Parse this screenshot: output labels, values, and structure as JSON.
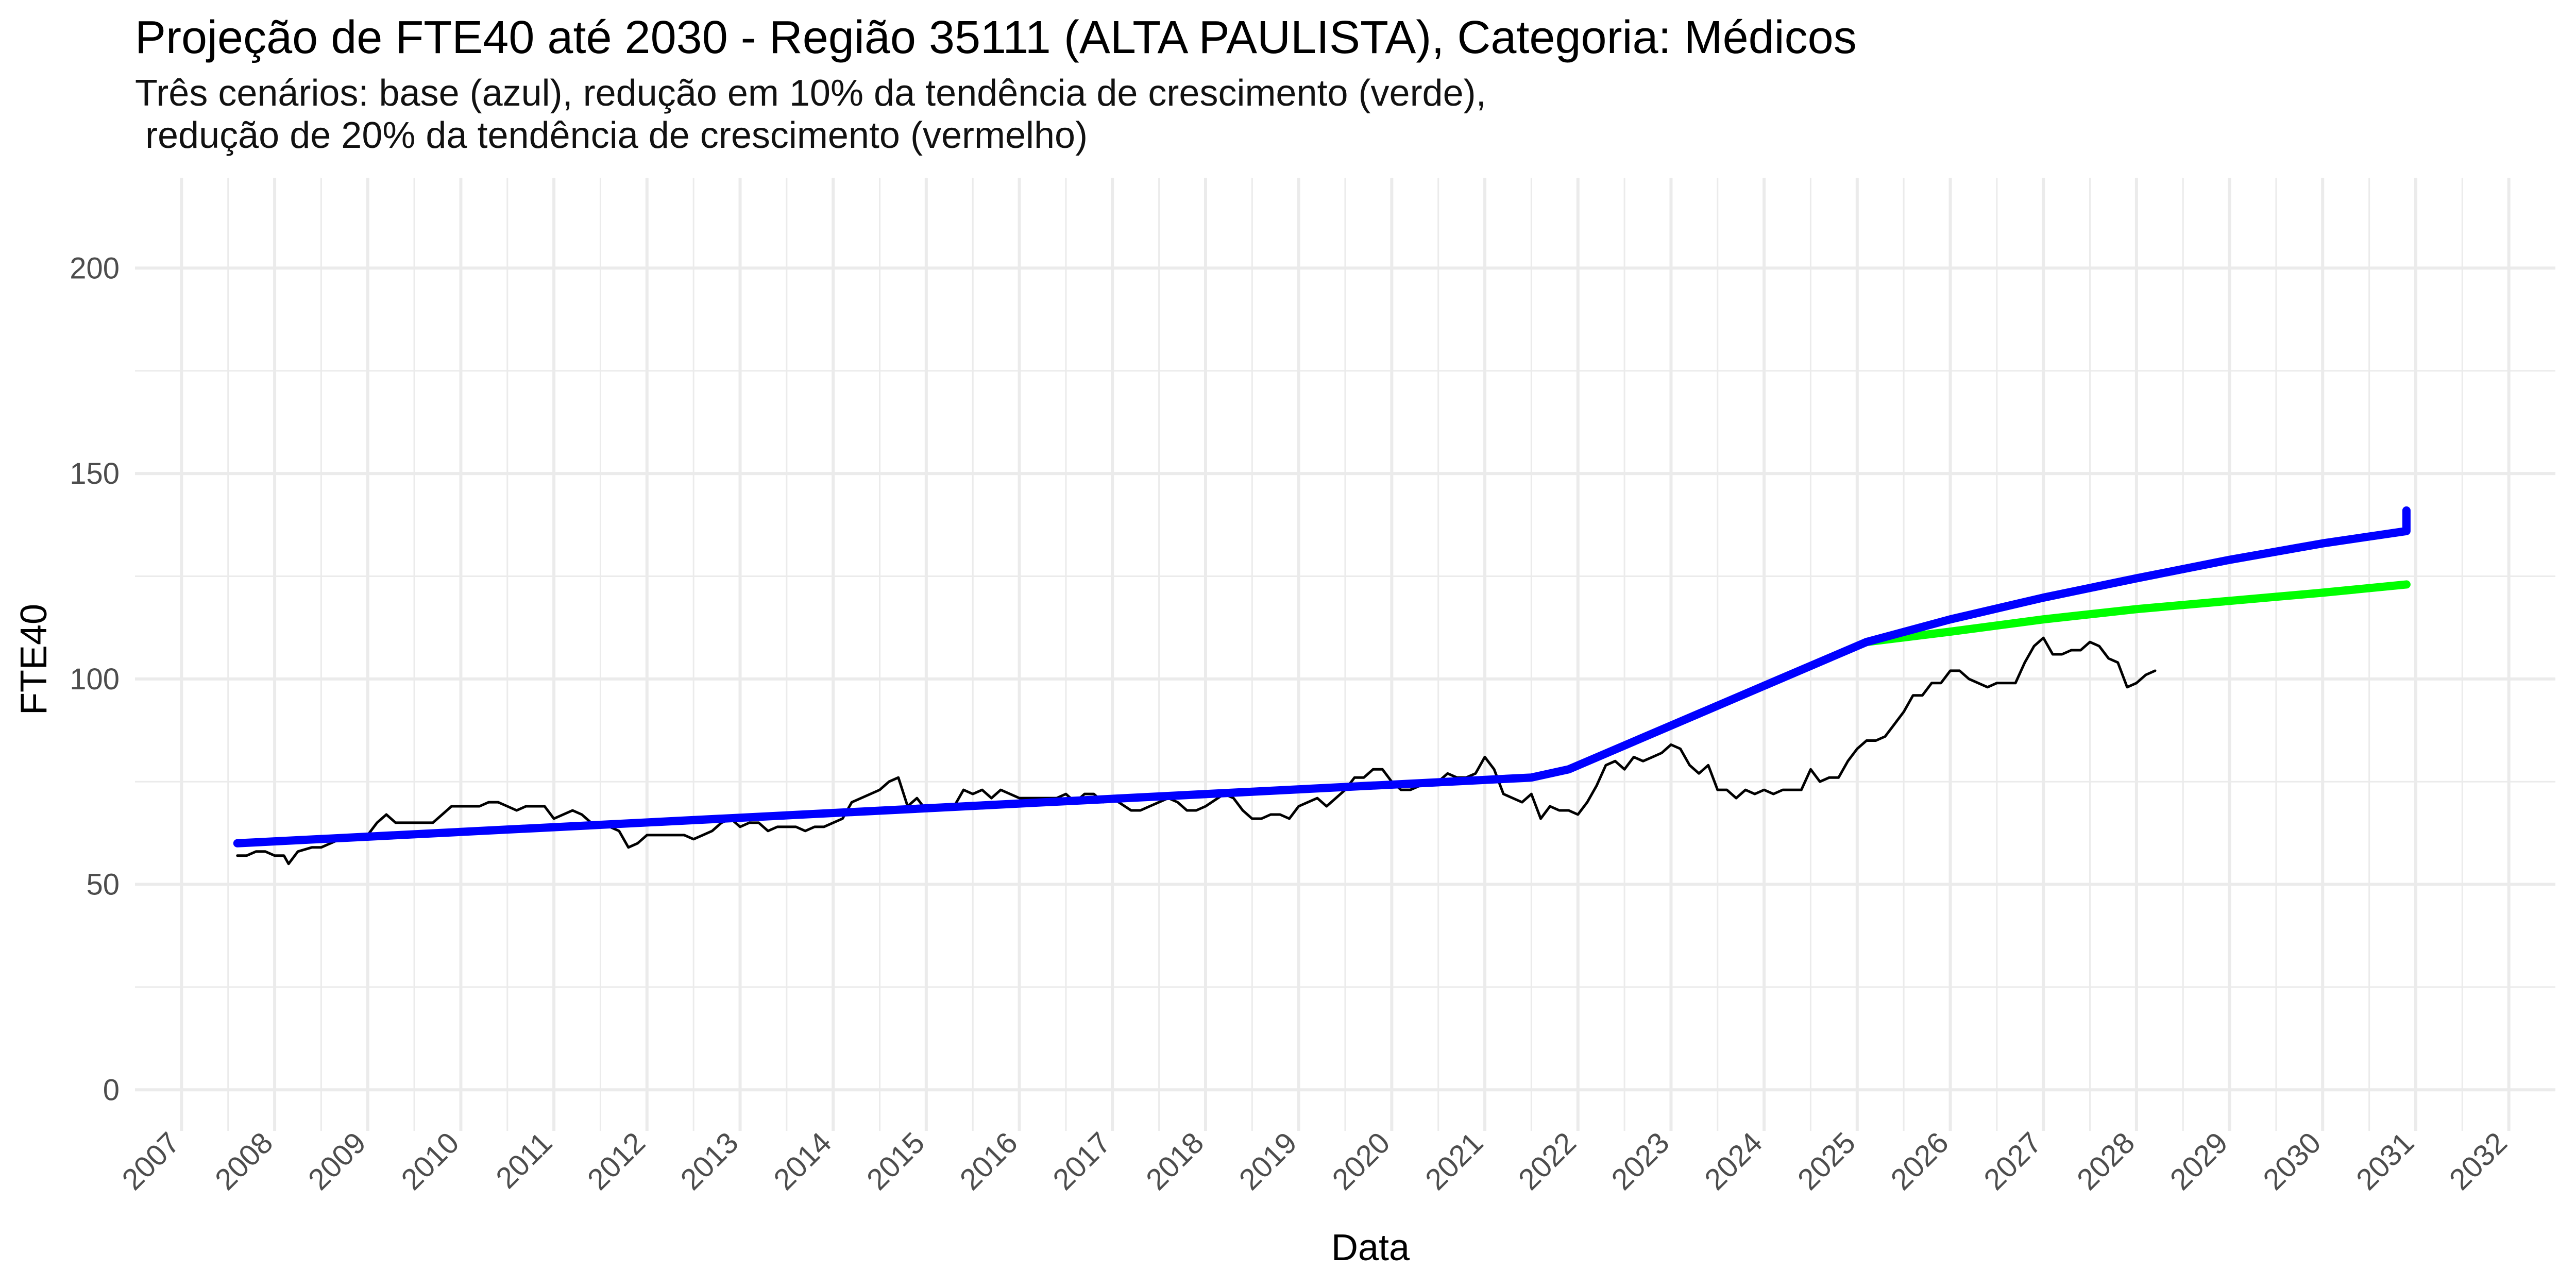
{
  "chart_data": {
    "type": "line",
    "title": "Projeção de FTE40 até 2030 - Região 35111 (ALTA PAULISTA), Categoria: Médicos",
    "subtitle": "Três cenários: base (azul), redução em 10% da tendência de crescimento (verde),\n redução de 20% da tendência de crescimento (vermelho)",
    "xlabel": "Data",
    "ylabel": "FTE40",
    "x_ticks": [
      "2007",
      "2008",
      "2009",
      "2010",
      "2011",
      "2012",
      "2013",
      "2014",
      "2015",
      "2016",
      "2017",
      "2018",
      "2019",
      "2020",
      "2021",
      "2022",
      "2023",
      "2024",
      "2025",
      "2026",
      "2027",
      "2028",
      "2029",
      "2030",
      "2031",
      "2032"
    ],
    "y_ticks": [
      0,
      50,
      100,
      150,
      200
    ],
    "xlim": [
      2006.5,
      2032.5
    ],
    "ylim": [
      -10,
      222
    ],
    "grid": true,
    "legend": "none",
    "colors": {
      "observed": "#000000",
      "base": "#0000ff",
      "green": "#00ff00",
      "red": "#ff0000",
      "grid": "#ebebeb"
    },
    "series": [
      {
        "values": [
          [
            2007.6,
            57
          ],
          [
            2007.7,
            57
          ],
          [
            2007.8,
            58
          ],
          [
            2007.9,
            58
          ],
          [
            2008.0,
            57
          ],
          [
            2008.1,
            57
          ],
          [
            2008.15,
            55
          ],
          [
            2008.25,
            58
          ],
          [
            2008.4,
            59
          ],
          [
            2008.5,
            59
          ],
          [
            2008.6,
            60
          ],
          [
            2008.7,
            61
          ],
          [
            2008.85,
            61
          ],
          [
            2009.0,
            62
          ],
          [
            2009.1,
            65
          ],
          [
            2009.15,
            66
          ],
          [
            2009.2,
            67
          ],
          [
            2009.3,
            65
          ],
          [
            2009.5,
            65
          ],
          [
            2009.7,
            65
          ],
          [
            2009.8,
            67
          ],
          [
            2009.9,
            69
          ],
          [
            2010.1,
            69
          ],
          [
            2010.2,
            69
          ],
          [
            2010.3,
            70
          ],
          [
            2010.4,
            70
          ],
          [
            2010.5,
            69
          ],
          [
            2010.6,
            68
          ],
          [
            2010.7,
            69
          ],
          [
            2010.8,
            69
          ],
          [
            2010.9,
            69
          ],
          [
            2011.0,
            66
          ],
          [
            2011.1,
            67
          ],
          [
            2011.2,
            68
          ],
          [
            2011.3,
            67
          ],
          [
            2011.4,
            65
          ],
          [
            2011.5,
            65
          ],
          [
            2011.7,
            63
          ],
          [
            2011.8,
            59
          ],
          [
            2011.9,
            60
          ],
          [
            2012.0,
            62
          ],
          [
            2012.2,
            62
          ],
          [
            2012.4,
            62
          ],
          [
            2012.5,
            61
          ],
          [
            2012.6,
            62
          ],
          [
            2012.7,
            63
          ],
          [
            2012.8,
            65
          ],
          [
            2012.9,
            66
          ],
          [
            2013.0,
            64
          ],
          [
            2013.1,
            65
          ],
          [
            2013.2,
            65
          ],
          [
            2013.3,
            63
          ],
          [
            2013.4,
            64
          ],
          [
            2013.6,
            64
          ],
          [
            2013.7,
            63
          ],
          [
            2013.8,
            64
          ],
          [
            2013.9,
            64
          ],
          [
            2014.1,
            66
          ],
          [
            2014.2,
            70
          ],
          [
            2014.3,
            71
          ],
          [
            2014.4,
            72
          ],
          [
            2014.5,
            73
          ],
          [
            2014.6,
            75
          ],
          [
            2014.7,
            76
          ],
          [
            2014.8,
            69
          ],
          [
            2014.9,
            71
          ],
          [
            2015.0,
            68
          ],
          [
            2015.1,
            69
          ],
          [
            2015.3,
            69
          ],
          [
            2015.4,
            73
          ],
          [
            2015.5,
            72
          ],
          [
            2015.6,
            73
          ],
          [
            2015.7,
            71
          ],
          [
            2015.8,
            73
          ],
          [
            2015.9,
            72
          ],
          [
            2016.0,
            71
          ],
          [
            2016.2,
            71
          ],
          [
            2016.4,
            71
          ],
          [
            2016.5,
            72
          ],
          [
            2016.6,
            70
          ],
          [
            2016.7,
            72
          ],
          [
            2016.8,
            72
          ],
          [
            2016.9,
            70
          ],
          [
            2017.0,
            71
          ],
          [
            2017.2,
            68
          ],
          [
            2017.3,
            68
          ],
          [
            2017.4,
            69
          ],
          [
            2017.5,
            70
          ],
          [
            2017.6,
            71
          ],
          [
            2017.7,
            70
          ],
          [
            2017.8,
            68
          ],
          [
            2017.9,
            68
          ],
          [
            2018.0,
            69
          ],
          [
            2018.2,
            72
          ],
          [
            2018.3,
            71
          ],
          [
            2018.4,
            68
          ],
          [
            2018.5,
            66
          ],
          [
            2018.6,
            66
          ],
          [
            2018.7,
            67
          ],
          [
            2018.8,
            67
          ],
          [
            2018.9,
            66
          ],
          [
            2019.0,
            69
          ],
          [
            2019.1,
            70
          ],
          [
            2019.2,
            71
          ],
          [
            2019.3,
            69
          ],
          [
            2019.4,
            71
          ],
          [
            2019.5,
            73
          ],
          [
            2019.6,
            76
          ],
          [
            2019.7,
            76
          ],
          [
            2019.8,
            78
          ],
          [
            2019.9,
            78
          ],
          [
            2020.0,
            75
          ],
          [
            2020.1,
            73
          ],
          [
            2020.2,
            73
          ],
          [
            2020.3,
            74
          ],
          [
            2020.4,
            75
          ],
          [
            2020.5,
            75
          ],
          [
            2020.6,
            77
          ],
          [
            2020.7,
            76
          ],
          [
            2020.8,
            76
          ],
          [
            2020.9,
            77
          ],
          [
            2021.0,
            81
          ],
          [
            2021.1,
            78
          ],
          [
            2021.2,
            72
          ],
          [
            2021.3,
            71
          ],
          [
            2021.4,
            70
          ],
          [
            2021.5,
            72
          ],
          [
            2021.6,
            66
          ],
          [
            2021.7,
            69
          ],
          [
            2021.8,
            68
          ],
          [
            2021.9,
            68
          ],
          [
            2022.0,
            67
          ],
          [
            2022.1,
            70
          ],
          [
            2022.2,
            74
          ],
          [
            2022.3,
            79
          ],
          [
            2022.4,
            80
          ],
          [
            2022.5,
            78
          ],
          [
            2022.6,
            81
          ],
          [
            2022.7,
            80
          ],
          [
            2022.8,
            81
          ],
          [
            2022.9,
            82
          ],
          [
            2023.0,
            84
          ],
          [
            2023.1,
            83
          ],
          [
            2023.2,
            79
          ],
          [
            2023.3,
            77
          ],
          [
            2023.4,
            79
          ],
          [
            2023.5,
            73
          ],
          [
            2023.6,
            73
          ],
          [
            2023.7,
            71
          ],
          [
            2023.8,
            73
          ],
          [
            2023.9,
            72
          ],
          [
            2024.0,
            73
          ],
          [
            2024.1,
            72
          ],
          [
            2024.2,
            73
          ],
          [
            2024.3,
            73
          ],
          [
            2024.4,
            73
          ],
          [
            2024.5,
            78
          ],
          [
            2024.6,
            75
          ],
          [
            2024.7,
            76
          ],
          [
            2024.8,
            76
          ],
          [
            2024.9,
            80
          ],
          [
            2025.0,
            83
          ],
          [
            2025.1,
            85
          ],
          [
            2025.2,
            85
          ],
          [
            2025.3,
            86
          ],
          [
            2025.4,
            89
          ],
          [
            2025.5,
            92
          ],
          [
            2025.6,
            96
          ],
          [
            2025.7,
            96
          ],
          [
            2025.8,
            99
          ],
          [
            2025.9,
            99
          ],
          [
            2026.0,
            102
          ],
          [
            2026.1,
            102
          ],
          [
            2026.2,
            100
          ],
          [
            2026.3,
            99
          ],
          [
            2026.4,
            98
          ],
          [
            2026.5,
            99
          ],
          [
            2026.6,
            99
          ],
          [
            2026.7,
            99
          ],
          [
            2026.8,
            104
          ],
          [
            2026.9,
            108
          ],
          [
            2027.0,
            110
          ],
          [
            2027.1,
            106
          ],
          [
            2027.2,
            106
          ],
          [
            2027.3,
            107
          ],
          [
            2027.4,
            107
          ],
          [
            2027.5,
            109
          ],
          [
            2027.6,
            108
          ],
          [
            2027.7,
            105
          ],
          [
            2027.8,
            104
          ],
          [
            2027.9,
            98
          ],
          [
            2028.0,
            99
          ],
          [
            2028.1,
            101
          ],
          [
            2028.2,
            102
          ]
        ]
      },
      {
        "values": [
          [
            2007.6,
            60
          ],
          [
            2021.5,
            76
          ],
          [
            2021.9,
            78
          ],
          [
            2025.1,
            109
          ]
        ]
      },
      {
        "values": [
          [
            2025.1,
            109
          ],
          [
            2026,
            114.5
          ],
          [
            2027,
            119.8
          ],
          [
            2028,
            124.5
          ],
          [
            2029,
            129
          ],
          [
            2030,
            133
          ],
          [
            2030.9,
            136
          ],
          [
            2030.9,
            141
          ]
        ]
      },
      {
        "values": [
          [
            2025.1,
            109
          ],
          [
            2026,
            111.5
          ],
          [
            2027,
            114.5
          ],
          [
            2028,
            117
          ],
          [
            2029,
            119
          ],
          [
            2030,
            121
          ],
          [
            2030.9,
            123
          ]
        ]
      }
    ]
  }
}
